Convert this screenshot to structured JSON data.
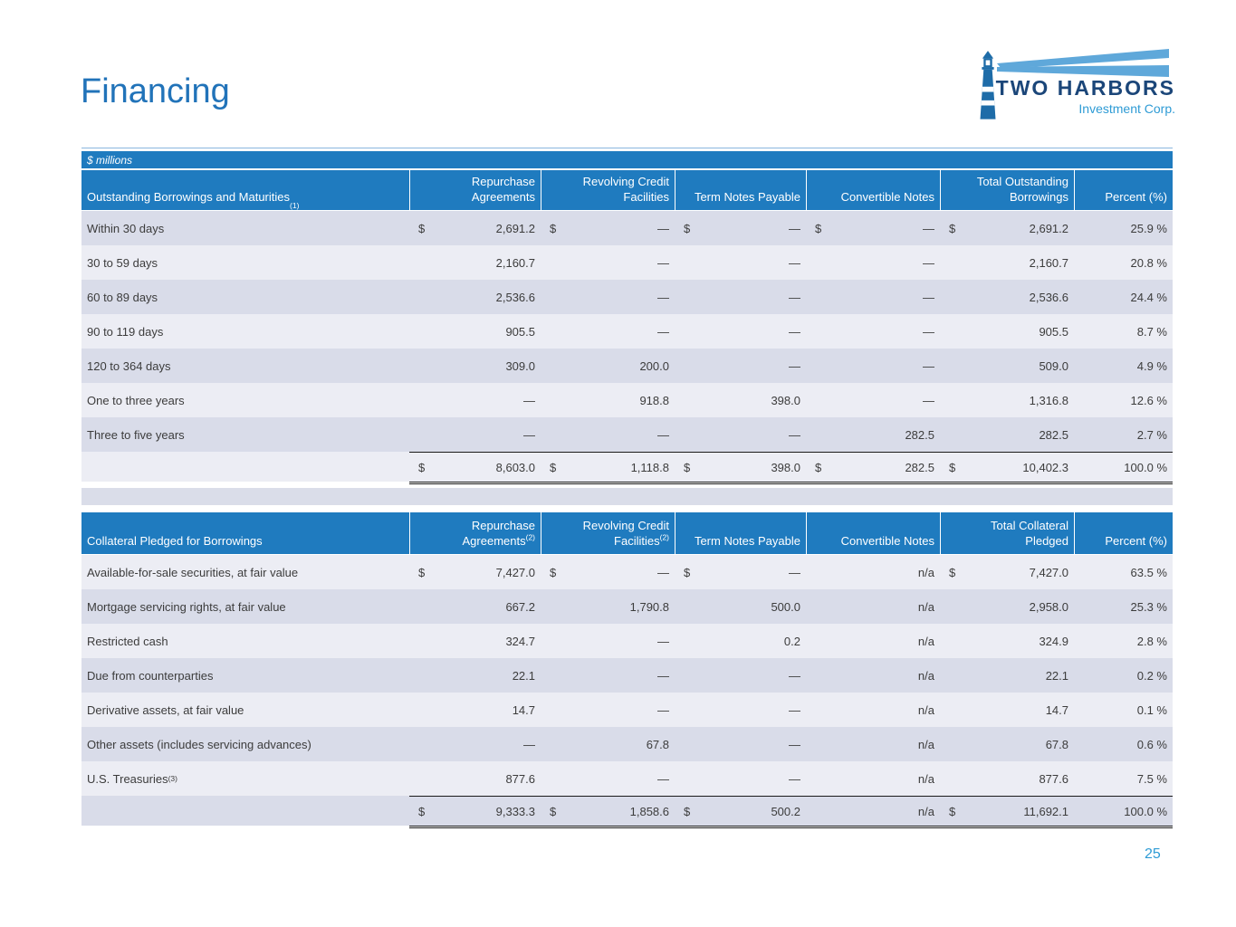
{
  "slide": {
    "title": "Financing",
    "units_label": "$ millions",
    "page_number": "25"
  },
  "logo": {
    "company": "TWO HARBORS",
    "subtitle": "Investment Corp.",
    "icon": "lighthouse-icon"
  },
  "colors": {
    "header_blue": "#1F7BBF",
    "title_blue": "#2173B9",
    "band_dark": "#D9DCE9",
    "band_light": "#ECEDF4",
    "logo_navy": "#1B4679",
    "logo_light_blue": "#2E9BD5",
    "body_text": "#3C3C3C"
  },
  "borrowings_table": {
    "header": {
      "label": "Outstanding Borrowings and Maturities",
      "sup": "(1)"
    },
    "columns": [
      {
        "label": "Repurchase Agreements",
        "sup": ""
      },
      {
        "label": "Revolving Credit Facilities",
        "sup": ""
      },
      {
        "label": "Term Notes Payable",
        "sup": ""
      },
      {
        "label": "Convertible Notes",
        "sup": ""
      },
      {
        "label": "Total Outstanding Borrowings",
        "sup": ""
      },
      {
        "label": "Percent (%)",
        "sup": ""
      }
    ],
    "rows": [
      {
        "label": "Within 30 days",
        "sup": "",
        "cells": [
          "$ 2,691.2",
          "$ —",
          "$ —",
          "$ —",
          "$ 2,691.2",
          "25.9 %"
        ]
      },
      {
        "label": "30 to 59 days",
        "sup": "",
        "cells": [
          "2,160.7",
          "—",
          "—",
          "—",
          "2,160.7",
          "20.8 %"
        ]
      },
      {
        "label": "60 to 89 days",
        "sup": "",
        "cells": [
          "2,536.6",
          "—",
          "—",
          "—",
          "2,536.6",
          "24.4 %"
        ]
      },
      {
        "label": "90 to 119 days",
        "sup": "",
        "cells": [
          "905.5",
          "—",
          "—",
          "—",
          "905.5",
          "8.7 %"
        ]
      },
      {
        "label": "120 to 364 days",
        "sup": "",
        "cells": [
          "309.0",
          "200.0",
          "—",
          "—",
          "509.0",
          "4.9 %"
        ]
      },
      {
        "label": "One to three years",
        "sup": "",
        "cells": [
          "—",
          "918.8",
          "398.0",
          "—",
          "1,316.8",
          "12.6 %"
        ]
      },
      {
        "label": "Three to five years",
        "sup": "",
        "cells": [
          "—",
          "—",
          "—",
          "282.5",
          "282.5",
          "2.7 %"
        ]
      }
    ],
    "total": {
      "label": "",
      "cells": [
        "$ 8,603.0",
        "$ 1,118.8",
        "$ 398.0",
        "$ 282.5",
        "$ 10,402.3",
        "100.0 %"
      ]
    }
  },
  "collateral_table": {
    "header": {
      "label": "Collateral Pledged for Borrowings",
      "sup": ""
    },
    "columns": [
      {
        "label": "Repurchase Agreements",
        "sup": "(2)"
      },
      {
        "label": "Revolving Credit Facilities",
        "sup": "(2)"
      },
      {
        "label": "Term Notes Payable",
        "sup": ""
      },
      {
        "label": "Convertible Notes",
        "sup": ""
      },
      {
        "label": "Total Collateral Pledged",
        "sup": ""
      },
      {
        "label": "Percent (%)",
        "sup": ""
      }
    ],
    "rows": [
      {
        "label": "Available-for-sale securities, at fair value",
        "sup": "",
        "cells": [
          "$ 7,427.0",
          "$ —",
          "$ —",
          "n/a",
          "$ 7,427.0",
          "63.5 %"
        ]
      },
      {
        "label": "Mortgage servicing rights, at fair value",
        "sup": "",
        "cells": [
          "667.2",
          "1,790.8",
          "500.0",
          "n/a",
          "2,958.0",
          "25.3 %"
        ]
      },
      {
        "label": "Restricted cash",
        "sup": "",
        "cells": [
          "324.7",
          "—",
          "0.2",
          "n/a",
          "324.9",
          "2.8 %"
        ]
      },
      {
        "label": "Due from counterparties",
        "sup": "",
        "cells": [
          "22.1",
          "—",
          "—",
          "n/a",
          "22.1",
          "0.2 %"
        ]
      },
      {
        "label": "Derivative assets, at fair value",
        "sup": "",
        "cells": [
          "14.7",
          "—",
          "—",
          "n/a",
          "14.7",
          "0.1 %"
        ]
      },
      {
        "label": "Other assets (includes servicing advances)",
        "sup": "",
        "cells": [
          "—",
          "67.8",
          "—",
          "n/a",
          "67.8",
          "0.6 %"
        ]
      },
      {
        "label": "U.S. Treasuries",
        "sup": "(3)",
        "cells": [
          "877.6",
          "—",
          "—",
          "n/a",
          "877.6",
          "7.5 %"
        ]
      }
    ],
    "total": {
      "label": "",
      "cells": [
        "$ 9,333.3",
        "$ 1,858.6",
        "$ 500.2",
        "n/a",
        "$ 11,692.1",
        "100.0 %"
      ]
    }
  }
}
